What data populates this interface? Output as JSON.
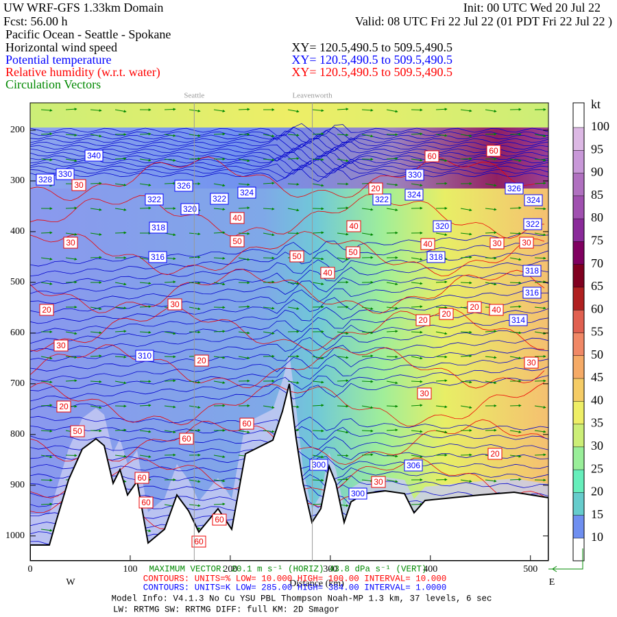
{
  "chart_data": {
    "type": "cross_section",
    "title": "UW WRF-GFS 1.33km Domain",
    "init": "Init: 00 UTC Wed 20 Jul 22",
    "forecast": "Fcst:   56.00 h",
    "valid": "Valid: 08 UTC Fri 22 Jul 22   (01 PDT Fri 22 Jul 22  )",
    "subtitle": "Pacific Ocean - Seattle - Spokane",
    "fields": [
      {
        "name": "Horizontal wind speed",
        "xy": "XY= 120.5,490.5 to 509.5,490.5",
        "color": "#000000"
      },
      {
        "name": "Potential temperature",
        "xy": "XY= 120.5,490.5 to 509.5,490.5",
        "color": "#0000ff"
      },
      {
        "name": "Relative humidity (w.r.t. water)",
        "xy": "XY= 120.5,490.5 to 509.5,490.5",
        "color": "#ff0000"
      },
      {
        "name": "Circulation Vectors",
        "color": "#008800"
      }
    ],
    "place_labels": [
      {
        "label": "Seattle",
        "x": 164
      },
      {
        "label": "Leavenworth",
        "x": 282
      }
    ],
    "xlabel": "Distance (km)",
    "west": "W",
    "east": "E",
    "xlim": [
      0,
      518
    ],
    "xticks": [
      0,
      100,
      200,
      300,
      400,
      500
    ],
    "ylim": [
      146,
      1049
    ],
    "yticks": [
      200,
      300,
      400,
      500,
      600,
      700,
      800,
      900,
      1000
    ],
    "colorbar": {
      "label": "kt",
      "ticks": [
        10,
        15,
        20,
        25,
        30,
        35,
        40,
        45,
        50,
        55,
        60,
        65,
        70,
        75,
        80,
        85,
        90,
        95,
        100
      ],
      "colors": [
        "#ffffff",
        "#6f8ff0",
        "#66cccc",
        "#66eebb",
        "#99ee99",
        "#ccee77",
        "#eeee66",
        "#f5cc66",
        "#f5aa66",
        "#f08866",
        "#e06050",
        "#b02020",
        "#800020",
        "#800060",
        "#8a2a9a",
        "#a050b0",
        "#b070c0",
        "#c898d8",
        "#dcb8e4",
        "#f2e2f2",
        "#ffffff"
      ]
    },
    "contour_labels": {
      "temperature": [
        "340",
        "330",
        "328",
        "326",
        "322",
        "320",
        "322",
        "324",
        "318",
        "316",
        "310",
        "330",
        "324",
        "322",
        "326",
        "320",
        "318",
        "324",
        "322",
        "318",
        "316",
        "314",
        "300",
        "300",
        "306"
      ],
      "humidity": [
        "30",
        "30",
        "20",
        "30",
        "20",
        "50",
        "30",
        "40",
        "50",
        "20",
        "50",
        "40",
        "40",
        "50",
        "20",
        "40",
        "20",
        "20",
        "20",
        "40",
        "30",
        "30",
        "30",
        "30",
        "20",
        "60",
        "60",
        "60",
        "60",
        "60",
        "60",
        "30",
        "60",
        "60"
      ]
    },
    "footer": [
      {
        "text": "MAXIMUM VECTOR: 20.1 m s⁻¹ (HORIZ)      43.8 dPa s⁻¹ (VERT)",
        "color": "#008800"
      },
      {
        "text": "CONTOURS:  UNITS=%  LOW=   10.000      HIGH=   100.00      INTERVAL=    10.000",
        "color": "#ff0000"
      },
      {
        "text": "CONTOURS:  UNITS=K  LOW=   285.00      HIGH=   384.00      INTERVAL=    1.0000",
        "color": "#0000ff"
      },
      {
        "text": "Model Info: V4.1.3    No Cu    YSU PBL  Thompson     Noah-MP    1.3 km,   37 levels,    6 sec",
        "color": "#000000"
      },
      {
        "text": "LW: RRTMG  SW: RRTMG    DIFF: full   KM: 2D Smagor",
        "color": "#000000"
      }
    ]
  }
}
